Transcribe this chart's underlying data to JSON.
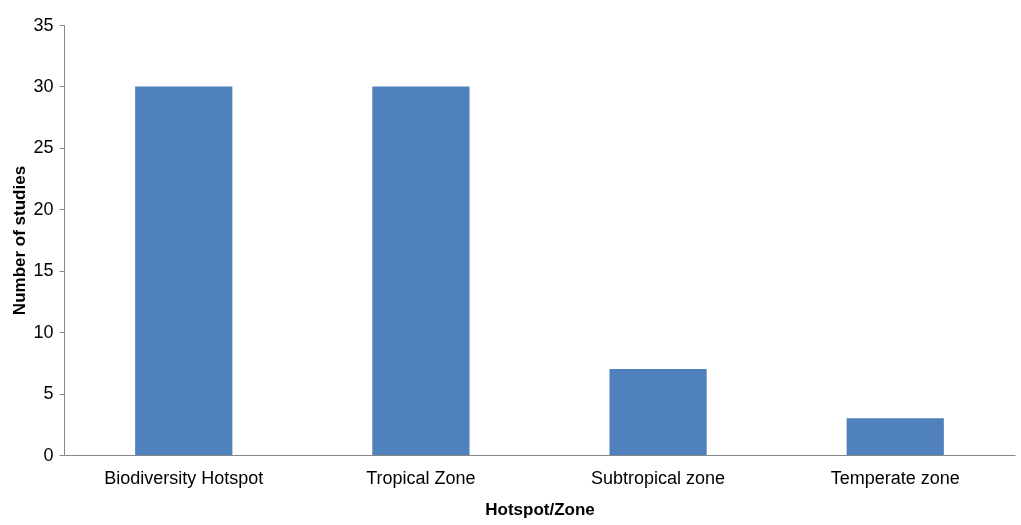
{
  "chart_data": {
    "type": "bar",
    "xlabel": "Hotspot/Zone",
    "ylabel": "Number of studies",
    "categories": [
      "Biodiversity  Hotspot",
      "Tropical Zone",
      "Subtropical zone",
      "Temperate zone"
    ],
    "values": [
      30,
      30,
      7,
      3
    ],
    "color": "#4f81bd",
    "ylim": [
      0,
      35
    ],
    "yticks": [
      0,
      5,
      10,
      15,
      20,
      25,
      30,
      35
    ],
    "grid": false
  }
}
